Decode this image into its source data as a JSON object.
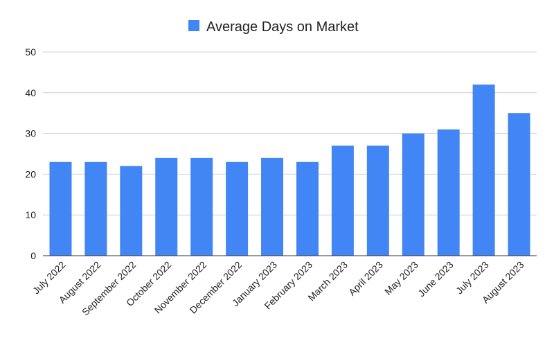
{
  "chart_data": {
    "type": "bar",
    "title": "",
    "xlabel": "",
    "ylabel": "",
    "legend": {
      "position": "top",
      "entries": [
        "Average Days on Market"
      ]
    },
    "categories": [
      "July 2022",
      "August 2022",
      "September 2022",
      "October 2022",
      "November 2022",
      "December 2022",
      "January 2023",
      "February 2023",
      "March 2023",
      "April 2023",
      "May 2023",
      "June 2023",
      "July 2023",
      "August 2023"
    ],
    "series": [
      {
        "name": "Average Days on Market",
        "color": "#4285f4",
        "values": [
          23,
          23,
          22,
          24,
          24,
          23,
          24,
          23,
          27,
          27,
          30,
          31,
          42,
          35
        ]
      }
    ],
    "ylim": [
      0,
      50
    ],
    "yticks": [
      0,
      10,
      20,
      30,
      40,
      50
    ],
    "grid": true
  }
}
